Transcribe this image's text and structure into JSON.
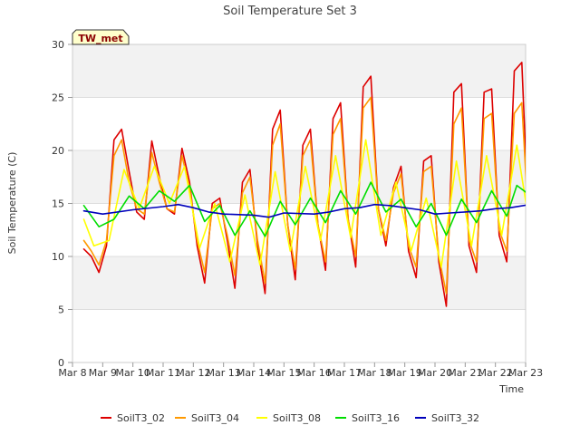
{
  "chart_data": {
    "type": "line",
    "title": "Soil Temperature Set 3",
    "xlabel": "Time",
    "ylabel": "Soil Temperature (C)",
    "ylim": [
      0,
      30
    ],
    "yticks": [
      0,
      5,
      10,
      15,
      20,
      25,
      30
    ],
    "xlim": [
      "2021-03-08",
      "2021-03-23"
    ],
    "xtick_labels": [
      "Mar 8",
      "Mar 9",
      "Mar 10",
      "Mar 11",
      "Mar 12",
      "Mar 13",
      "Mar 14",
      "Mar 15",
      "Mar 16",
      "Mar 17",
      "Mar 18",
      "Mar 19",
      "Mar 20",
      "Mar 21",
      "Mar 22",
      "Mar 23"
    ],
    "grid": "horizontal bands",
    "legend_position": "bottom",
    "annotation": "TW_met",
    "series": [
      {
        "name": "SoilT3_02",
        "color": "#dd0000",
        "x": [
          "2021-03-08T09:00",
          "2021-03-08T15:00",
          "2021-03-08T21:00",
          "2021-03-09T03:00",
          "2021-03-09T09:00",
          "2021-03-09T15:00",
          "2021-03-09T21:00",
          "2021-03-10T03:00",
          "2021-03-10T09:00",
          "2021-03-10T15:00",
          "2021-03-10T21:00",
          "2021-03-11T03:00",
          "2021-03-11T09:00",
          "2021-03-11T15:00",
          "2021-03-11T21:00",
          "2021-03-12T03:00",
          "2021-03-12T09:00",
          "2021-03-12T15:00",
          "2021-03-12T21:00",
          "2021-03-13T03:00",
          "2021-03-13T09:00",
          "2021-03-13T15:00",
          "2021-03-13T21:00",
          "2021-03-14T03:00",
          "2021-03-14T09:00",
          "2021-03-14T15:00",
          "2021-03-14T21:00",
          "2021-03-15T03:00",
          "2021-03-15T09:00",
          "2021-03-15T15:00",
          "2021-03-15T21:00",
          "2021-03-16T03:00",
          "2021-03-16T09:00",
          "2021-03-16T15:00",
          "2021-03-16T21:00",
          "2021-03-17T03:00",
          "2021-03-17T09:00",
          "2021-03-17T15:00",
          "2021-03-17T21:00",
          "2021-03-18T03:00",
          "2021-03-18T09:00",
          "2021-03-18T15:00",
          "2021-03-18T21:00",
          "2021-03-19T03:00",
          "2021-03-19T09:00",
          "2021-03-19T15:00",
          "2021-03-19T21:00",
          "2021-03-20T03:00",
          "2021-03-20T09:00",
          "2021-03-20T15:00",
          "2021-03-20T21:00",
          "2021-03-21T03:00",
          "2021-03-21T09:00",
          "2021-03-21T15:00",
          "2021-03-21T21:00",
          "2021-03-22T03:00",
          "2021-03-22T09:00",
          "2021-03-22T15:00",
          "2021-03-22T21:00",
          "2021-03-23T03:00"
        ],
        "y": [
          10.7,
          10.0,
          8.5,
          11.0,
          21.0,
          22.0,
          18.0,
          14.2,
          13.5,
          20.9,
          17.5,
          14.5,
          14.0,
          20.2,
          17.0,
          11.0,
          7.5,
          15.0,
          15.5,
          11.5,
          7.0,
          17.0,
          18.2,
          11.0,
          6.5,
          22.0,
          23.8,
          13.0,
          7.8,
          20.5,
          22.0,
          13.0,
          8.7,
          23.0,
          24.5,
          13.5,
          9.0,
          26.0,
          27.0,
          14.5,
          11.0,
          16.5,
          18.5,
          10.5,
          8.0,
          19.0,
          19.5,
          9.5,
          5.3,
          25.5,
          26.3,
          11.0,
          8.5,
          25.5,
          25.8,
          12.0,
          9.5,
          27.5,
          28.3,
          11.0
        ]
      },
      {
        "name": "SoilT3_04",
        "color": "#ff9900",
        "x": [
          "2021-03-08T09:00",
          "2021-03-08T15:00",
          "2021-03-08T21:00",
          "2021-03-09T03:00",
          "2021-03-09T09:00",
          "2021-03-09T15:00",
          "2021-03-09T21:00",
          "2021-03-10T03:00",
          "2021-03-10T09:00",
          "2021-03-10T15:00",
          "2021-03-10T21:00",
          "2021-03-11T03:00",
          "2021-03-11T09:00",
          "2021-03-11T15:00",
          "2021-03-11T21:00",
          "2021-03-12T03:00",
          "2021-03-12T09:00",
          "2021-03-12T15:00",
          "2021-03-12T21:00",
          "2021-03-13T03:00",
          "2021-03-13T09:00",
          "2021-03-13T15:00",
          "2021-03-13T21:00",
          "2021-03-14T03:00",
          "2021-03-14T09:00",
          "2021-03-14T15:00",
          "2021-03-14T21:00",
          "2021-03-15T03:00",
          "2021-03-15T09:00",
          "2021-03-15T15:00",
          "2021-03-15T21:00",
          "2021-03-16T03:00",
          "2021-03-16T09:00",
          "2021-03-16T15:00",
          "2021-03-16T21:00",
          "2021-03-17T03:00",
          "2021-03-17T09:00",
          "2021-03-17T15:00",
          "2021-03-17T21:00",
          "2021-03-18T03:00",
          "2021-03-18T09:00",
          "2021-03-18T15:00",
          "2021-03-18T21:00",
          "2021-03-19T03:00",
          "2021-03-19T09:00",
          "2021-03-19T15:00",
          "2021-03-19T21:00",
          "2021-03-20T03:00",
          "2021-03-20T09:00",
          "2021-03-20T15:00",
          "2021-03-20T21:00",
          "2021-03-21T03:00",
          "2021-03-21T09:00",
          "2021-03-21T15:00",
          "2021-03-21T21:00",
          "2021-03-22T03:00",
          "2021-03-22T09:00",
          "2021-03-22T15:00",
          "2021-03-22T21:00",
          "2021-03-23T03:00"
        ],
        "y": [
          11.5,
          10.5,
          9.2,
          11.5,
          19.5,
          21.0,
          17.0,
          14.5,
          14.0,
          19.8,
          17.0,
          14.5,
          14.2,
          19.5,
          16.5,
          11.5,
          8.5,
          14.5,
          15.0,
          12.0,
          8.2,
          16.0,
          17.5,
          11.5,
          7.5,
          20.5,
          22.5,
          13.0,
          8.8,
          19.5,
          21.0,
          13.0,
          9.5,
          21.5,
          23.0,
          13.5,
          10.0,
          24.0,
          25.0,
          14.5,
          11.5,
          16.0,
          17.8,
          11.0,
          9.0,
          18.0,
          18.5,
          10.0,
          6.5,
          22.5,
          24.0,
          11.5,
          9.5,
          23.0,
          23.5,
          12.5,
          10.5,
          23.5,
          24.5,
          11.5
        ]
      },
      {
        "name": "SoilT3_08",
        "color": "#ffff00",
        "x": [
          "2021-03-08T09:00",
          "2021-03-08T17:00",
          "2021-03-09T05:00",
          "2021-03-09T17:00",
          "2021-03-10T05:00",
          "2021-03-10T17:00",
          "2021-03-11T05:00",
          "2021-03-11T17:00",
          "2021-03-12T05:00",
          "2021-03-12T17:00",
          "2021-03-13T05:00",
          "2021-03-13T17:00",
          "2021-03-14T05:00",
          "2021-03-14T17:00",
          "2021-03-15T05:00",
          "2021-03-15T17:00",
          "2021-03-16T05:00",
          "2021-03-16T17:00",
          "2021-03-17T05:00",
          "2021-03-17T17:00",
          "2021-03-18T05:00",
          "2021-03-18T17:00",
          "2021-03-19T05:00",
          "2021-03-19T17:00",
          "2021-03-20T05:00",
          "2021-03-20T17:00",
          "2021-03-21T05:00",
          "2021-03-21T17:00",
          "2021-03-22T05:00",
          "2021-03-22T17:00",
          "2021-03-23T03:00"
        ],
        "y": [
          13.5,
          11.0,
          11.5,
          18.2,
          14.5,
          18.5,
          15.0,
          18.5,
          10.8,
          15.0,
          9.5,
          15.8,
          9.2,
          18.0,
          10.5,
          18.5,
          11.5,
          19.5,
          11.8,
          21.0,
          12.0,
          17.0,
          10.5,
          15.5,
          9.0,
          19.0,
          11.0,
          19.5,
          12.0,
          20.5,
          13.0
        ]
      },
      {
        "name": "SoilT3_16",
        "color": "#00dd00",
        "x": [
          "2021-03-08T09:00",
          "2021-03-08T21:00",
          "2021-03-09T09:00",
          "2021-03-09T21:00",
          "2021-03-10T09:00",
          "2021-03-10T21:00",
          "2021-03-11T09:00",
          "2021-03-11T21:00",
          "2021-03-12T09:00",
          "2021-03-12T21:00",
          "2021-03-13T09:00",
          "2021-03-13T21:00",
          "2021-03-14T09:00",
          "2021-03-14T21:00",
          "2021-03-15T09:00",
          "2021-03-15T21:00",
          "2021-03-16T09:00",
          "2021-03-16T21:00",
          "2021-03-17T09:00",
          "2021-03-17T21:00",
          "2021-03-18T09:00",
          "2021-03-18T21:00",
          "2021-03-19T09:00",
          "2021-03-19T21:00",
          "2021-03-20T09:00",
          "2021-03-20T21:00",
          "2021-03-21T09:00",
          "2021-03-21T21:00",
          "2021-03-22T09:00",
          "2021-03-22T17:00",
          "2021-03-23T03:00"
        ],
        "y": [
          14.8,
          12.8,
          13.5,
          15.7,
          14.5,
          16.2,
          15.2,
          16.7,
          13.3,
          14.8,
          12.0,
          14.3,
          11.9,
          15.2,
          13.0,
          15.5,
          13.2,
          16.2,
          14.0,
          17.0,
          14.2,
          15.4,
          12.8,
          15.0,
          12.0,
          15.4,
          13.2,
          16.2,
          13.8,
          16.7,
          15.8
        ]
      },
      {
        "name": "SoilT3_32",
        "color": "#0000bb",
        "x": [
          "2021-03-08T09:00",
          "2021-03-09T00:00",
          "2021-03-10T00:00",
          "2021-03-11T00:00",
          "2021-03-11T12:00",
          "2021-03-12T00:00",
          "2021-03-12T12:00",
          "2021-03-13T00:00",
          "2021-03-14T00:00",
          "2021-03-14T12:00",
          "2021-03-15T00:00",
          "2021-03-16T00:00",
          "2021-03-16T12:00",
          "2021-03-17T00:00",
          "2021-03-17T12:00",
          "2021-03-18T00:00",
          "2021-03-18T12:00",
          "2021-03-19T00:00",
          "2021-03-19T12:00",
          "2021-03-20T00:00",
          "2021-03-20T12:00",
          "2021-03-21T00:00",
          "2021-03-21T12:00",
          "2021-03-22T00:00",
          "2021-03-22T12:00",
          "2021-03-23T03:00"
        ],
        "y": [
          14.3,
          14.0,
          14.4,
          14.7,
          14.9,
          14.6,
          14.2,
          14.0,
          13.9,
          13.7,
          14.1,
          14.0,
          14.2,
          14.5,
          14.6,
          14.9,
          14.8,
          14.6,
          14.4,
          14.0,
          14.1,
          14.2,
          14.3,
          14.5,
          14.6,
          14.9
        ]
      }
    ]
  }
}
